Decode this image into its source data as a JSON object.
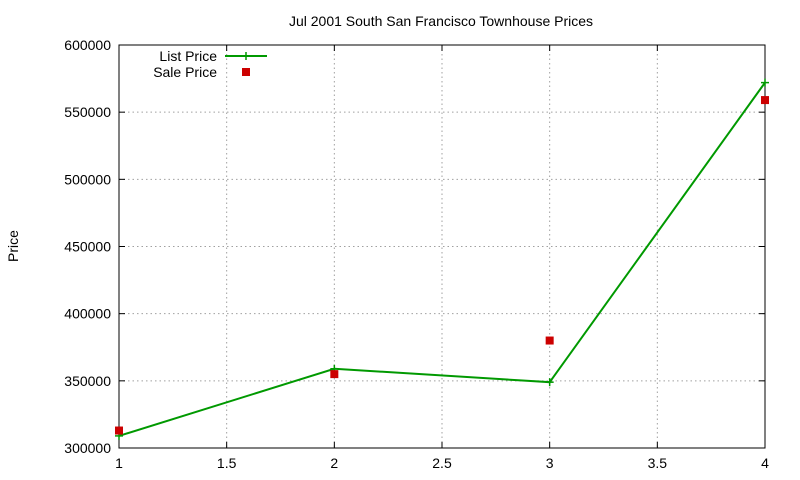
{
  "chart_data": {
    "type": "line",
    "title": "Jul 2001 South San Francisco Townhouse Prices",
    "xlabel": "",
    "ylabel": "Price",
    "xlim": [
      1,
      4
    ],
    "ylim": [
      300000,
      600000
    ],
    "x_ticks": [
      1,
      1.5,
      2,
      2.5,
      3,
      3.5,
      4
    ],
    "x_tick_labels": [
      "1",
      "1.5",
      "2",
      "2.5",
      "3",
      "3.5",
      "4"
    ],
    "y_ticks": [
      300000,
      350000,
      400000,
      450000,
      500000,
      550000,
      600000
    ],
    "y_tick_labels": [
      "300000",
      "350000",
      "400000",
      "450000",
      "500000",
      "550000",
      "600000"
    ],
    "grid": true,
    "legend_position": "top-left",
    "series": [
      {
        "name": "List Price",
        "style": "lines+crosses",
        "color": "#009900",
        "x": [
          1,
          2,
          3,
          4
        ],
        "values": [
          309000,
          359000,
          349000,
          572000
        ]
      },
      {
        "name": "Sale Price",
        "style": "squares",
        "color": "#cc0000",
        "x": [
          1,
          2,
          3,
          4
        ],
        "values": [
          313000,
          355000,
          380000,
          559000
        ]
      }
    ]
  }
}
